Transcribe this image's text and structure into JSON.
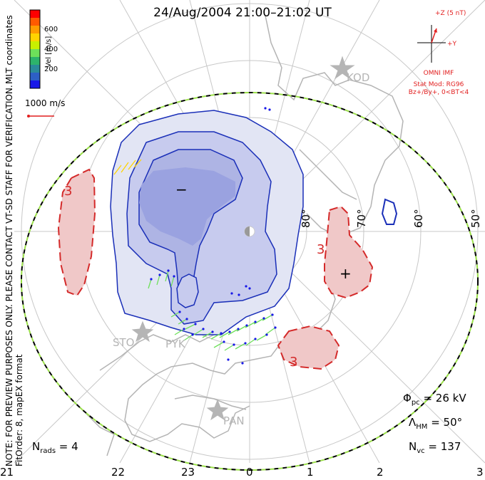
{
  "title": "24/Aug/2004  21:00–21:02  UT",
  "side_note": "NOTE: FOR PREVIEW PURPOSES ONLY. PLEASE CONTACT VT-SD STAFF FOR VERIFICATION.",
  "side_note2": "FitOrder: 8, mapEX format",
  "mlt_coords_label": "MLT coordinates",
  "colorbar": {
    "label": "Vel [m/s]",
    "ticks": [
      "600",
      "400",
      "200"
    ],
    "colors": [
      "#ff0000",
      "#ff5a00",
      "#ff9c00",
      "#ffd400",
      "#c8f000",
      "#6ee05a",
      "#2db36b",
      "#2a8a9a",
      "#2d5fc6",
      "#1818e8"
    ]
  },
  "scale_vector_label": "1000 m/s",
  "imf": {
    "z_label": "+Z (5 nT)",
    "y_label": "+Y",
    "source": "OMNI IMF",
    "stat_mod": "Stat Mod: RG96",
    "condition": "Bz+/By+, 0<BT<4"
  },
  "stations": [
    "KOD",
    "STO",
    "PYK",
    "PAN"
  ],
  "latitude_labels": [
    "80°",
    "70°",
    "60°",
    "50°"
  ],
  "mlt_labels": [
    "21",
    "22",
    "23",
    "0",
    "1",
    "2",
    "3"
  ],
  "potential_labels": {
    "minus": "−",
    "plus": "+",
    "contour_value": "3"
  },
  "stats": {
    "phi_pc": "Φpc = 26 kV",
    "phi_pc_symbol": "Φ",
    "phi_pc_sub": "pc",
    "phi_pc_value": " = 26 kV",
    "lambda_hm_symbol": "Λ",
    "lambda_hm_sub": "HM",
    "lambda_hm_value": " = 50°",
    "n_vc_symbol": "N",
    "n_vc_sub": "vc",
    "n_vc_value": " = 137",
    "n_rads_symbol": "N",
    "n_rads_sub": "rads",
    "n_rads_value": " = 4"
  },
  "colors": {
    "negative_cell": "#7e8cd8",
    "positive_cell": "#f0c8c8",
    "negative_contour": "#1a2fb8",
    "positive_contour": "#d42a2a",
    "coastline": "#b4b4b4",
    "grid": "#c8c8c8",
    "boundary_green": "#9be04a"
  }
}
